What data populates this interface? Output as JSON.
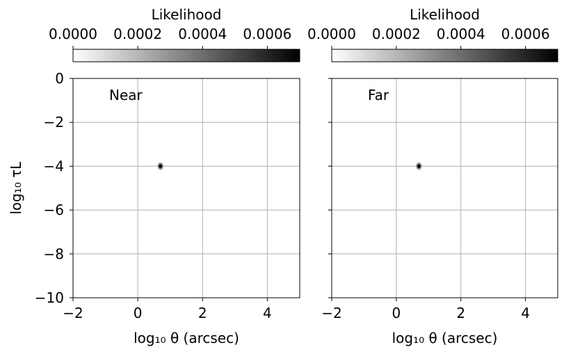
{
  "chart_data": [
    {
      "type": "heatmap",
      "panel_label": "Near",
      "xlabel": "log₁₀ θ (arcsec)",
      "ylabel": "log₁₀ τL",
      "xlim": [
        -2,
        5
      ],
      "ylim": [
        -10,
        0
      ],
      "xticks": [
        -2,
        0,
        2,
        4
      ],
      "yticks": [
        0,
        -2,
        -4,
        -6,
        -8,
        -10
      ],
      "grid": true,
      "colorbar": {
        "label": "Likelihood",
        "position": "top",
        "range": [
          0,
          0.0007
        ],
        "ticks": [
          "0.0000",
          "0.0002",
          "0.0004",
          "0.0006"
        ],
        "colormap": "gray_r"
      },
      "peak": {
        "x": 0.7,
        "y": -4.0,
        "value": 0.0007,
        "spread_x": 0.1,
        "spread_y": 0.18
      }
    },
    {
      "type": "heatmap",
      "panel_label": "Far",
      "xlabel": "log₁₀ θ (arcsec)",
      "ylabel": "",
      "xlim": [
        -2,
        5
      ],
      "ylim": [
        -10,
        0
      ],
      "xticks": [
        -2,
        0,
        2,
        4
      ],
      "yticks": [
        0,
        -2,
        -4,
        -6,
        -8,
        -10
      ],
      "grid": true,
      "colorbar": {
        "label": "Likelihood",
        "position": "top",
        "range": [
          0,
          0.0007
        ],
        "ticks": [
          "0.0000",
          "0.0002",
          "0.0004",
          "0.0006"
        ],
        "colormap": "gray_r"
      },
      "peak": {
        "x": 0.7,
        "y": -4.0,
        "value": 0.0007,
        "spread_x": 0.1,
        "spread_y": 0.18
      }
    }
  ],
  "colors": {
    "grid": "#b0b0b0",
    "axes": "#000000",
    "background": "#ffffff"
  }
}
